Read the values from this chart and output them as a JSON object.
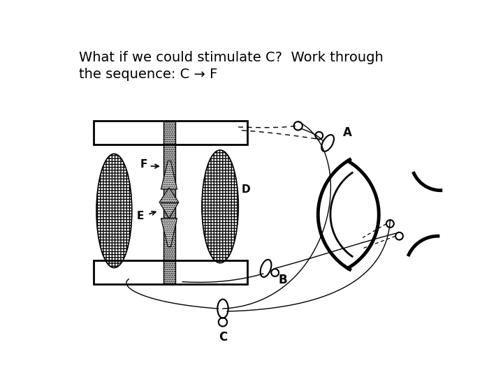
{
  "title_line1": "What if we could stimulate C?  Work through",
  "title_line2": "the sequence: C → F",
  "title_fontsize": 14,
  "bg_color": "#ffffff",
  "label_A": "A",
  "label_B": "B",
  "label_C": "C",
  "label_D": "D",
  "label_E": "E",
  "label_F": "F"
}
